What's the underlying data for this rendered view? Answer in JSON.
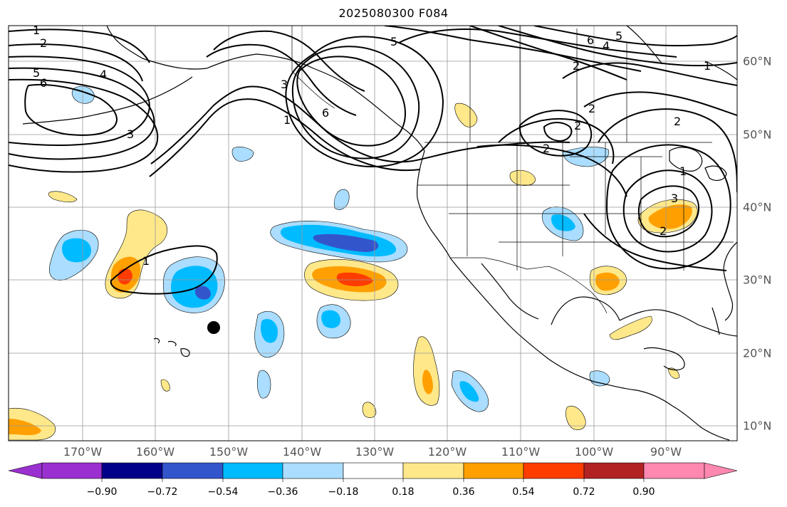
{
  "title": "2025080300 F084",
  "longitude_labels": [
    "170°W",
    "160°W",
    "150°W",
    "140°W",
    "130°W",
    "120°W",
    "110°W",
    "100°W",
    "90°W"
  ],
  "latitude_labels": [
    "10°N",
    "20°N",
    "30°N",
    "40°N",
    "50°N",
    "60°N"
  ],
  "colorbar": {
    "tick_labels": [
      "−0.90",
      "−0.72",
      "−0.54",
      "−0.36",
      "−0.18",
      "0.18",
      "0.36",
      "0.54",
      "0.72",
      "0.90"
    ],
    "colors": [
      "#9b30d0",
      "#000088",
      "#3355cc",
      "#00bbff",
      "#aaddff",
      "#ffffff",
      "#ffe88a",
      "#ffa000",
      "#ff3c00",
      "#b22222",
      "#ff88b0"
    ]
  },
  "contour_labels": [
    "1",
    "2",
    "5",
    "6",
    "4",
    "3",
    "1",
    "3",
    "6",
    "5",
    "6",
    "4",
    "5",
    "2",
    "2",
    "1",
    "2",
    "2",
    "2",
    "1",
    "3",
    "2",
    "1"
  ],
  "colors": {
    "contour": "#000000",
    "grid": "#999999",
    "tick_text": "#555555"
  },
  "marker": "black-dot"
}
